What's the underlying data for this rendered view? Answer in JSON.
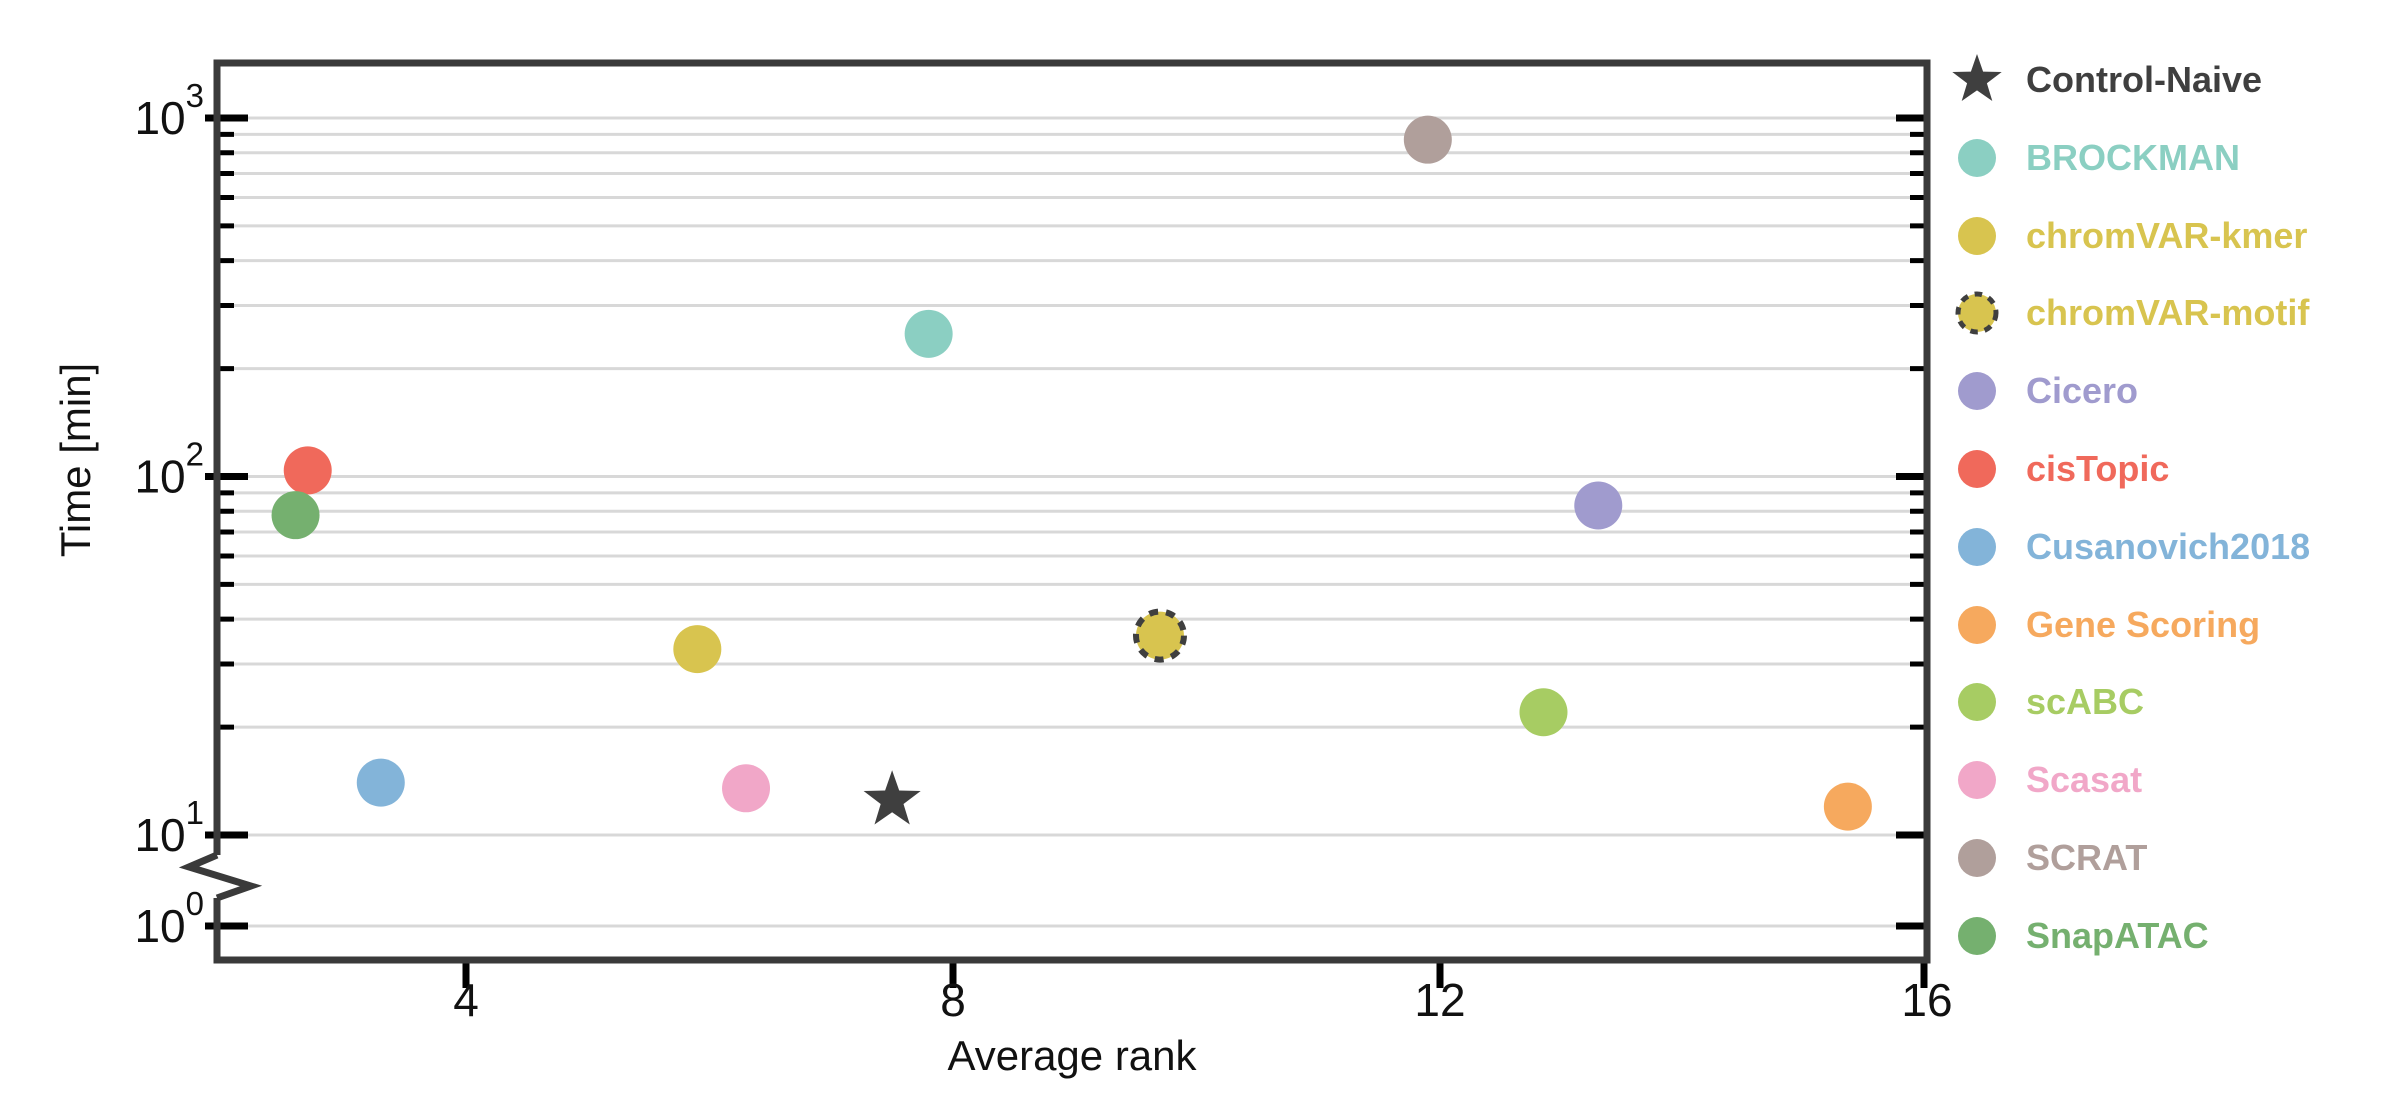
{
  "chart_data": {
    "type": "scatter",
    "title": "",
    "xlabel": "Average rank",
    "ylabel": "Time [min]",
    "x_axis": {
      "ticks": [
        4,
        8,
        12,
        16
      ],
      "range": [
        1.95,
        16.05
      ],
      "gridlines": false
    },
    "y_axis": {
      "scale": "log10",
      "unit": "min",
      "major_ticks": [
        {
          "value": 1000,
          "base": "10",
          "exp": "3"
        },
        {
          "value": 100,
          "base": "10",
          "exp": "2"
        },
        {
          "value": 10,
          "base": "10",
          "exp": "1"
        },
        {
          "value": 1,
          "base": "10",
          "exp": "0"
        }
      ],
      "minor_gridlines": [
        20,
        30,
        40,
        50,
        60,
        70,
        80,
        90,
        200,
        300,
        400,
        500,
        600,
        700,
        800,
        900
      ],
      "axis_break_between": [
        1,
        10
      ],
      "gridlines": true
    },
    "points": [
      {
        "label": "Control-Naive",
        "marker": "star",
        "color": "#3f3f3f",
        "avg_rank": 7.5,
        "time_min": 12.5
      },
      {
        "label": "BROCKMAN",
        "marker": "circle",
        "color": "#8bcfc2",
        "avg_rank": 7.8,
        "time_min": 250
      },
      {
        "label": "chromVAR-kmer",
        "marker": "circle",
        "color": "#d8c44f",
        "avg_rank": 5.9,
        "time_min": 33
      },
      {
        "label": "chromVAR-motif",
        "marker": "circle-dashed",
        "color": "#d8c44f",
        "avg_rank": 9.7,
        "time_min": 36
      },
      {
        "label": "Cicero",
        "marker": "circle",
        "color": "#a09bce",
        "avg_rank": 13.3,
        "time_min": 83
      },
      {
        "label": "cisTopic",
        "marker": "circle",
        "color": "#f0695b",
        "avg_rank": 2.7,
        "time_min": 104
      },
      {
        "label": "Cusanovich2018",
        "marker": "circle",
        "color": "#83b4d9",
        "avg_rank": 3.3,
        "time_min": 14
      },
      {
        "label": "Gene Scoring",
        "marker": "circle",
        "color": "#f6a95e",
        "avg_rank": 15.35,
        "time_min": 12
      },
      {
        "label": "scABC",
        "marker": "circle",
        "color": "#a7cc63",
        "avg_rank": 12.85,
        "time_min": 22
      },
      {
        "label": "Scasat",
        "marker": "circle",
        "color": "#f1a7c8",
        "avg_rank": 6.3,
        "time_min": 13.5
      },
      {
        "label": "SCRAT",
        "marker": "circle",
        "color": "#b09f9b",
        "avg_rank": 11.9,
        "time_min": 870
      },
      {
        "label": "SnapATAC",
        "marker": "circle",
        "color": "#75b06f",
        "avg_rank": 2.6,
        "time_min": 78
      }
    ],
    "legend": {
      "position": "right-outside",
      "bold": true
    }
  },
  "style": {
    "frame_color": "#3a3a3a",
    "gridline_color": "#d8d8d8",
    "tick_color": "#000000",
    "text_color": "#111111",
    "dashed_outline_color": "#3f3f3f",
    "background": "#ffffff"
  }
}
